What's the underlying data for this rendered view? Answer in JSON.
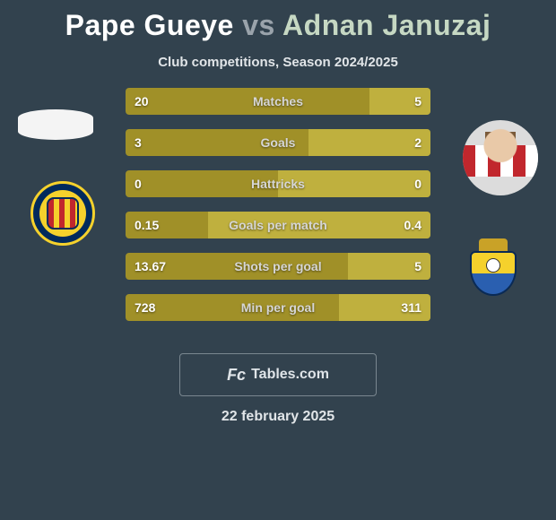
{
  "title": {
    "player1": "Pape Gueye",
    "vs": "vs",
    "player2": "Adnan Januzaj",
    "fontsize": 32,
    "p1_color": "#ffffff",
    "vs_color": "#9aa3ab",
    "p2_color": "#c6d8c3"
  },
  "subtitle": "Club competitions, Season 2024/2025",
  "background_color": "#32424e",
  "bar_style": {
    "left_color": "#a09028",
    "right_color": "#bfb03e",
    "height": 30,
    "gap": 16,
    "radius": 4,
    "value_fontsize": 14,
    "label_fontsize": 14,
    "label_color": "#d6d6d6",
    "value_color": "#ffffff"
  },
  "rows": [
    {
      "label": "Matches",
      "left": "20",
      "right": "5",
      "left_pct": 80,
      "right_pct": 20
    },
    {
      "label": "Goals",
      "left": "3",
      "right": "2",
      "left_pct": 60,
      "right_pct": 40
    },
    {
      "label": "Hattricks",
      "left": "0",
      "right": "0",
      "left_pct": 50,
      "right_pct": 50
    },
    {
      "label": "Goals per match",
      "left": "0.15",
      "right": "0.4",
      "left_pct": 27,
      "right_pct": 73
    },
    {
      "label": "Shots per goal",
      "left": "13.67",
      "right": "5",
      "left_pct": 73,
      "right_pct": 27
    },
    {
      "label": "Min per goal",
      "left": "728",
      "right": "311",
      "left_pct": 70,
      "right_pct": 30
    }
  ],
  "avatars": {
    "left_top": {
      "name": "player1-photo-missing"
    },
    "left_bot": {
      "name": "villarreal-crest"
    },
    "right_top": {
      "name": "player2-photo"
    },
    "right_bot": {
      "name": "laspalmas-crest"
    }
  },
  "footer": {
    "brand_prefix": "Fc",
    "brand_text": "Tables.com"
  },
  "date": "22 february 2025"
}
